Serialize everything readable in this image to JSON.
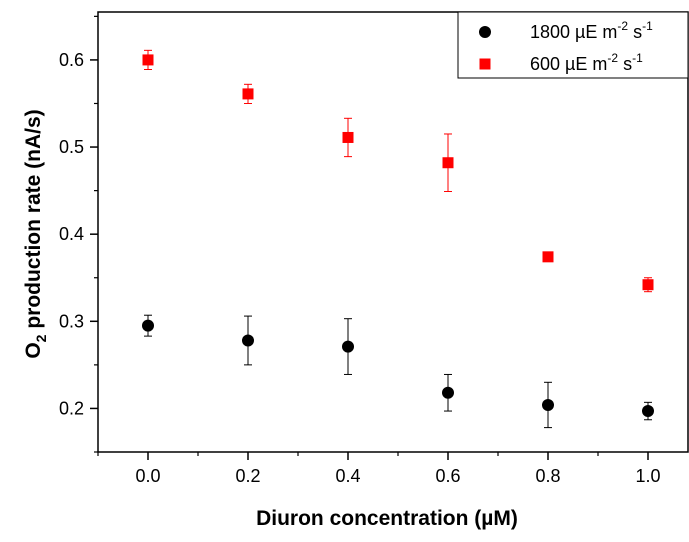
{
  "chart_data": {
    "type": "scatter",
    "title": "",
    "xlabel": "Diuron concentration (µM)",
    "ylabel_main": "O",
    "ylabel_sub": "2",
    "ylabel_rest": " production rate (nA/s)",
    "xlim": [
      -0.1,
      1.08
    ],
    "ylim": [
      0.15,
      0.655
    ],
    "xticks": [
      0.0,
      0.2,
      0.4,
      0.6,
      0.8,
      1.0
    ],
    "xtick_labels": [
      "0.0",
      "0.2",
      "0.4",
      "0.6",
      "0.8",
      "1.0"
    ],
    "yticks": [
      0.2,
      0.3,
      0.4,
      0.5,
      0.6
    ],
    "ytick_labels": [
      "0.2",
      "0.3",
      "0.4",
      "0.5",
      "0.6"
    ],
    "grid": false,
    "legend_position": "top-right",
    "series": [
      {
        "name": "1800 µE m-2 s-1",
        "legend_base": "1800 µE m",
        "legend_exp1": "-2",
        "legend_mid": " s",
        "legend_exp2": "-1",
        "marker": "circle",
        "color": "#000000",
        "points": [
          {
            "x": 0.0,
            "y": 0.295,
            "err": 0.012
          },
          {
            "x": 0.2,
            "y": 0.278,
            "err": 0.028
          },
          {
            "x": 0.4,
            "y": 0.271,
            "err": 0.032
          },
          {
            "x": 0.6,
            "y": 0.218,
            "err": 0.021
          },
          {
            "x": 0.8,
            "y": 0.204,
            "err": 0.026
          },
          {
            "x": 1.0,
            "y": 0.197,
            "err": 0.01
          }
        ]
      },
      {
        "name": "600 µE m-2 s-1",
        "legend_base": "600 µE m",
        "legend_exp1": "-2",
        "legend_mid": " s",
        "legend_exp2": "-1",
        "marker": "square",
        "color": "#ff0000",
        "points": [
          {
            "x": 0.0,
            "y": 0.6,
            "err": 0.011
          },
          {
            "x": 0.2,
            "y": 0.561,
            "err": 0.011
          },
          {
            "x": 0.4,
            "y": 0.511,
            "err": 0.022
          },
          {
            "x": 0.6,
            "y": 0.482,
            "err": 0.033
          },
          {
            "x": 0.8,
            "y": 0.374,
            "err": 0.0
          },
          {
            "x": 1.0,
            "y": 0.342,
            "err": 0.008
          }
        ]
      }
    ]
  }
}
